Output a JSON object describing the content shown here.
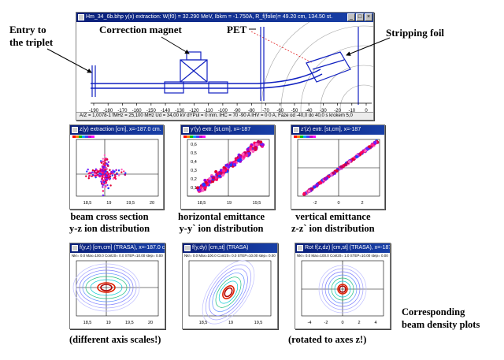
{
  "annotations": {
    "entry": [
      "Entry to",
      "the triplet"
    ],
    "correction_magnet": "Correction magnet",
    "pet": "PET",
    "stripping_foil": "Stripping foil",
    "corresponding": [
      "Corresponding",
      "beam density plots"
    ]
  },
  "main_window": {
    "title": "Hm_34_6b.bhp y(x) extraction: W(f0) = 32.290 MeV, Ibkm = -1.750A,  R_f(folie)= 49.20 cm, 134.50 st.",
    "x_ticks": [
      "-190",
      "-180",
      "-170",
      "-160",
      "-150",
      "-140",
      "-130",
      "-120",
      "-110",
      "-100",
      "-90",
      "-80",
      "-70",
      "-60",
      "-50",
      "-40",
      "-30",
      "-20",
      "-10",
      "0"
    ],
    "status": "A/Z = 1,0078-1  fMHz = 25,100 MHz  Ud = 34,00 kV  dYPul = 0 mm.  IHC =  70  -90 A   IHV =  0  0 A,  Fáze od -40,0 do 40,0 s krokem 5,0"
  },
  "scatter_windows": [
    {
      "title": "z(y) extraction [cm], x=-187.0 cm.",
      "x_ticks": [
        "18,5",
        "19",
        "19,5",
        "20"
      ]
    },
    {
      "title": "y'(y) extr. [st,cm], x=-187",
      "x_ticks": [
        "18,5",
        "19",
        "19,5"
      ],
      "y_ticks": [
        "0,6",
        "0,5",
        "0,4",
        "0,3",
        "0,2",
        "0,1"
      ]
    },
    {
      "title": "z'(z) extr. [st,cm], x=-187",
      "x_ticks": [
        "-2",
        "0",
        "2"
      ]
    }
  ],
  "scatter_captions": [
    [
      "beam cross section",
      "y-z ion distribution"
    ],
    [
      "horizontal emittance",
      "y-y` ion distribution"
    ],
    [
      "vertical emittance",
      "z-z` ion distribution"
    ]
  ],
  "density_windows": [
    {
      "title": "f(y,z) [cm,cm] (TRASA), x=-187.0 cm",
      "info": "Nkr= 0.0  Max=100.0  Contz0=  0.0  STEP=10.00  step= 0.00",
      "x_ticks": [
        "18,5",
        "19",
        "19,5",
        "20"
      ]
    },
    {
      "title": "f(y,dy) [cm,st] (TRASA)",
      "info": "Nkr= 0.0  Max=100.0  Contz0=  0.0  STEP=10.00  step= 0.00",
      "x_ticks": [
        "18,5",
        "19",
        "19,5"
      ]
    },
    {
      "title": "Rot f(z,dz) [cm,st] (TRASA), x=-187.0 c.",
      "info": "Nkr= 0.0  Max=100.0  Contz0=  1.0  STEP=10.00  step= 0.00",
      "x_ticks": [
        "-4",
        "-2",
        "0",
        "2",
        "4"
      ]
    }
  ],
  "density_captions": [
    "(different axis scales!)",
    "(rotated to axes z!)"
  ],
  "colors": {
    "titlebar": "#0a1f7a",
    "beam": "#1020c0",
    "contour_red": "#e00000",
    "contour_cyan": "#00c8d0"
  }
}
